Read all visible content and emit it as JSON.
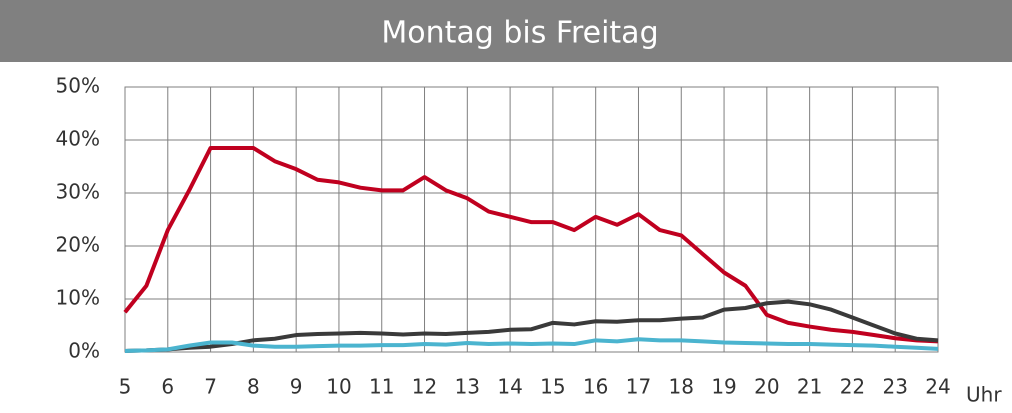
{
  "chart_data": {
    "type": "line",
    "title": "Montag bis Freitag",
    "x_label": "Uhr",
    "x": [
      5,
      5.5,
      6,
      6.5,
      7,
      7.5,
      8,
      8.5,
      9,
      9.5,
      10,
      10.5,
      11,
      11.5,
      12,
      12.5,
      13,
      13.5,
      14,
      14.5,
      15,
      15.5,
      16,
      16.5,
      17,
      17.5,
      18,
      18.5,
      19,
      19.5,
      20,
      20.5,
      21,
      21.5,
      22,
      22.5,
      23,
      23.5,
      24
    ],
    "series": [
      {
        "color": "#c0001f",
        "values": [
          7.5,
          12.5,
          23,
          30.5,
          38.5,
          38.5,
          38.5,
          36,
          34.5,
          32.5,
          32,
          31,
          30.5,
          30.5,
          33,
          30.5,
          29,
          26.5,
          25.5,
          24.5,
          24.5,
          23,
          25.5,
          24,
          26,
          23,
          22,
          18.5,
          15,
          12.5,
          7,
          5.5,
          4.8,
          4.2,
          3.8,
          3.2,
          2.6,
          2.2,
          2
        ]
      },
      {
        "color": "#3a3a3a",
        "values": [
          0.2,
          0.3,
          0.5,
          0.8,
          1,
          1.5,
          2.2,
          2.5,
          3.2,
          3.4,
          3.5,
          3.6,
          3.5,
          3.3,
          3.5,
          3.4,
          3.6,
          3.8,
          4.2,
          4.3,
          5.5,
          5.2,
          5.8,
          5.7,
          6,
          6,
          6.3,
          6.5,
          8,
          8.3,
          9.2,
          9.5,
          9,
          8,
          6.5,
          5,
          3.5,
          2.5,
          2.2
        ]
      },
      {
        "color": "#4bb4cf",
        "values": [
          0.2,
          0.3,
          0.5,
          1.2,
          1.8,
          1.8,
          1.2,
          1,
          1,
          1.1,
          1.2,
          1.2,
          1.3,
          1.3,
          1.5,
          1.4,
          1.7,
          1.5,
          1.6,
          1.5,
          1.6,
          1.5,
          2.2,
          2,
          2.4,
          2.2,
          2.2,
          2,
          1.8,
          1.7,
          1.6,
          1.5,
          1.5,
          1.4,
          1.3,
          1.2,
          1,
          0.8,
          0.6
        ]
      }
    ],
    "xlim": [
      5,
      24
    ],
    "xticks": [
      5,
      6,
      7,
      8,
      9,
      10,
      11,
      12,
      13,
      14,
      15,
      16,
      17,
      18,
      19,
      20,
      21,
      22,
      23,
      24
    ],
    "ylim": [
      0,
      50
    ],
    "yticks": [
      {
        "value": 0,
        "label": "0%"
      },
      {
        "value": 10,
        "label": "10%"
      },
      {
        "value": 20,
        "label": "20%"
      },
      {
        "value": 30,
        "label": "30%"
      },
      {
        "value": 40,
        "label": "40%"
      },
      {
        "value": 50,
        "label": "50%"
      }
    ],
    "grid": true
  }
}
